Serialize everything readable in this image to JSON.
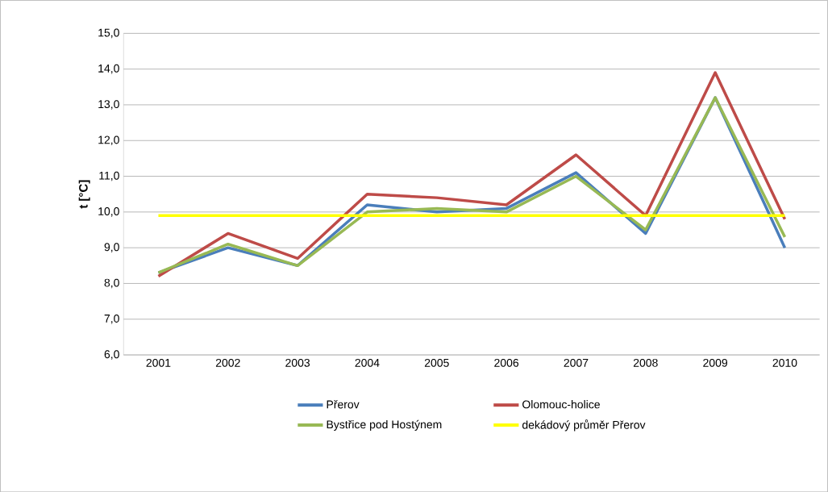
{
  "chart_data": {
    "type": "line",
    "ylabel": "t [°C]",
    "categories": [
      "2001",
      "2002",
      "2003",
      "2004",
      "2005",
      "2006",
      "2007",
      "2008",
      "2009",
      "2010"
    ],
    "series": [
      {
        "name": "Přerov",
        "color": "#4a7ebb",
        "values": [
          8.3,
          9.0,
          8.5,
          10.2,
          10.0,
          10.1,
          11.1,
          9.4,
          13.2,
          9.0
        ]
      },
      {
        "name": "Olomouc-holice",
        "color": "#be4b48",
        "values": [
          8.2,
          9.4,
          8.7,
          10.5,
          10.4,
          10.2,
          11.6,
          9.9,
          13.9,
          9.8
        ]
      },
      {
        "name": "Bystřice pod Hostýnem",
        "color": "#98b954",
        "values": [
          8.3,
          9.1,
          8.5,
          10.0,
          10.1,
          10.0,
          11.0,
          9.5,
          13.2,
          9.3
        ]
      },
      {
        "name": "dekádový průměr Přerov",
        "color": "#ffff00",
        "values": [
          9.9,
          9.9,
          9.9,
          9.9,
          9.9,
          9.9,
          9.9,
          9.9,
          9.9,
          9.9
        ]
      }
    ],
    "ylim": [
      6,
      15
    ],
    "yticks": [
      {
        "value": 6,
        "label": "6,0"
      },
      {
        "value": 7,
        "label": "7,0"
      },
      {
        "value": 8,
        "label": "8,0"
      },
      {
        "value": 9,
        "label": "9,0"
      },
      {
        "value": 10,
        "label": "10,0"
      },
      {
        "value": 11,
        "label": "11,0"
      },
      {
        "value": 12,
        "label": "12,0"
      },
      {
        "value": 13,
        "label": "13,0"
      },
      {
        "value": 14,
        "label": "14,0"
      },
      {
        "value": 15,
        "label": "15,0"
      }
    ],
    "grid": "y",
    "legend": "bottom",
    "marker": "none",
    "line_style": "solid"
  }
}
